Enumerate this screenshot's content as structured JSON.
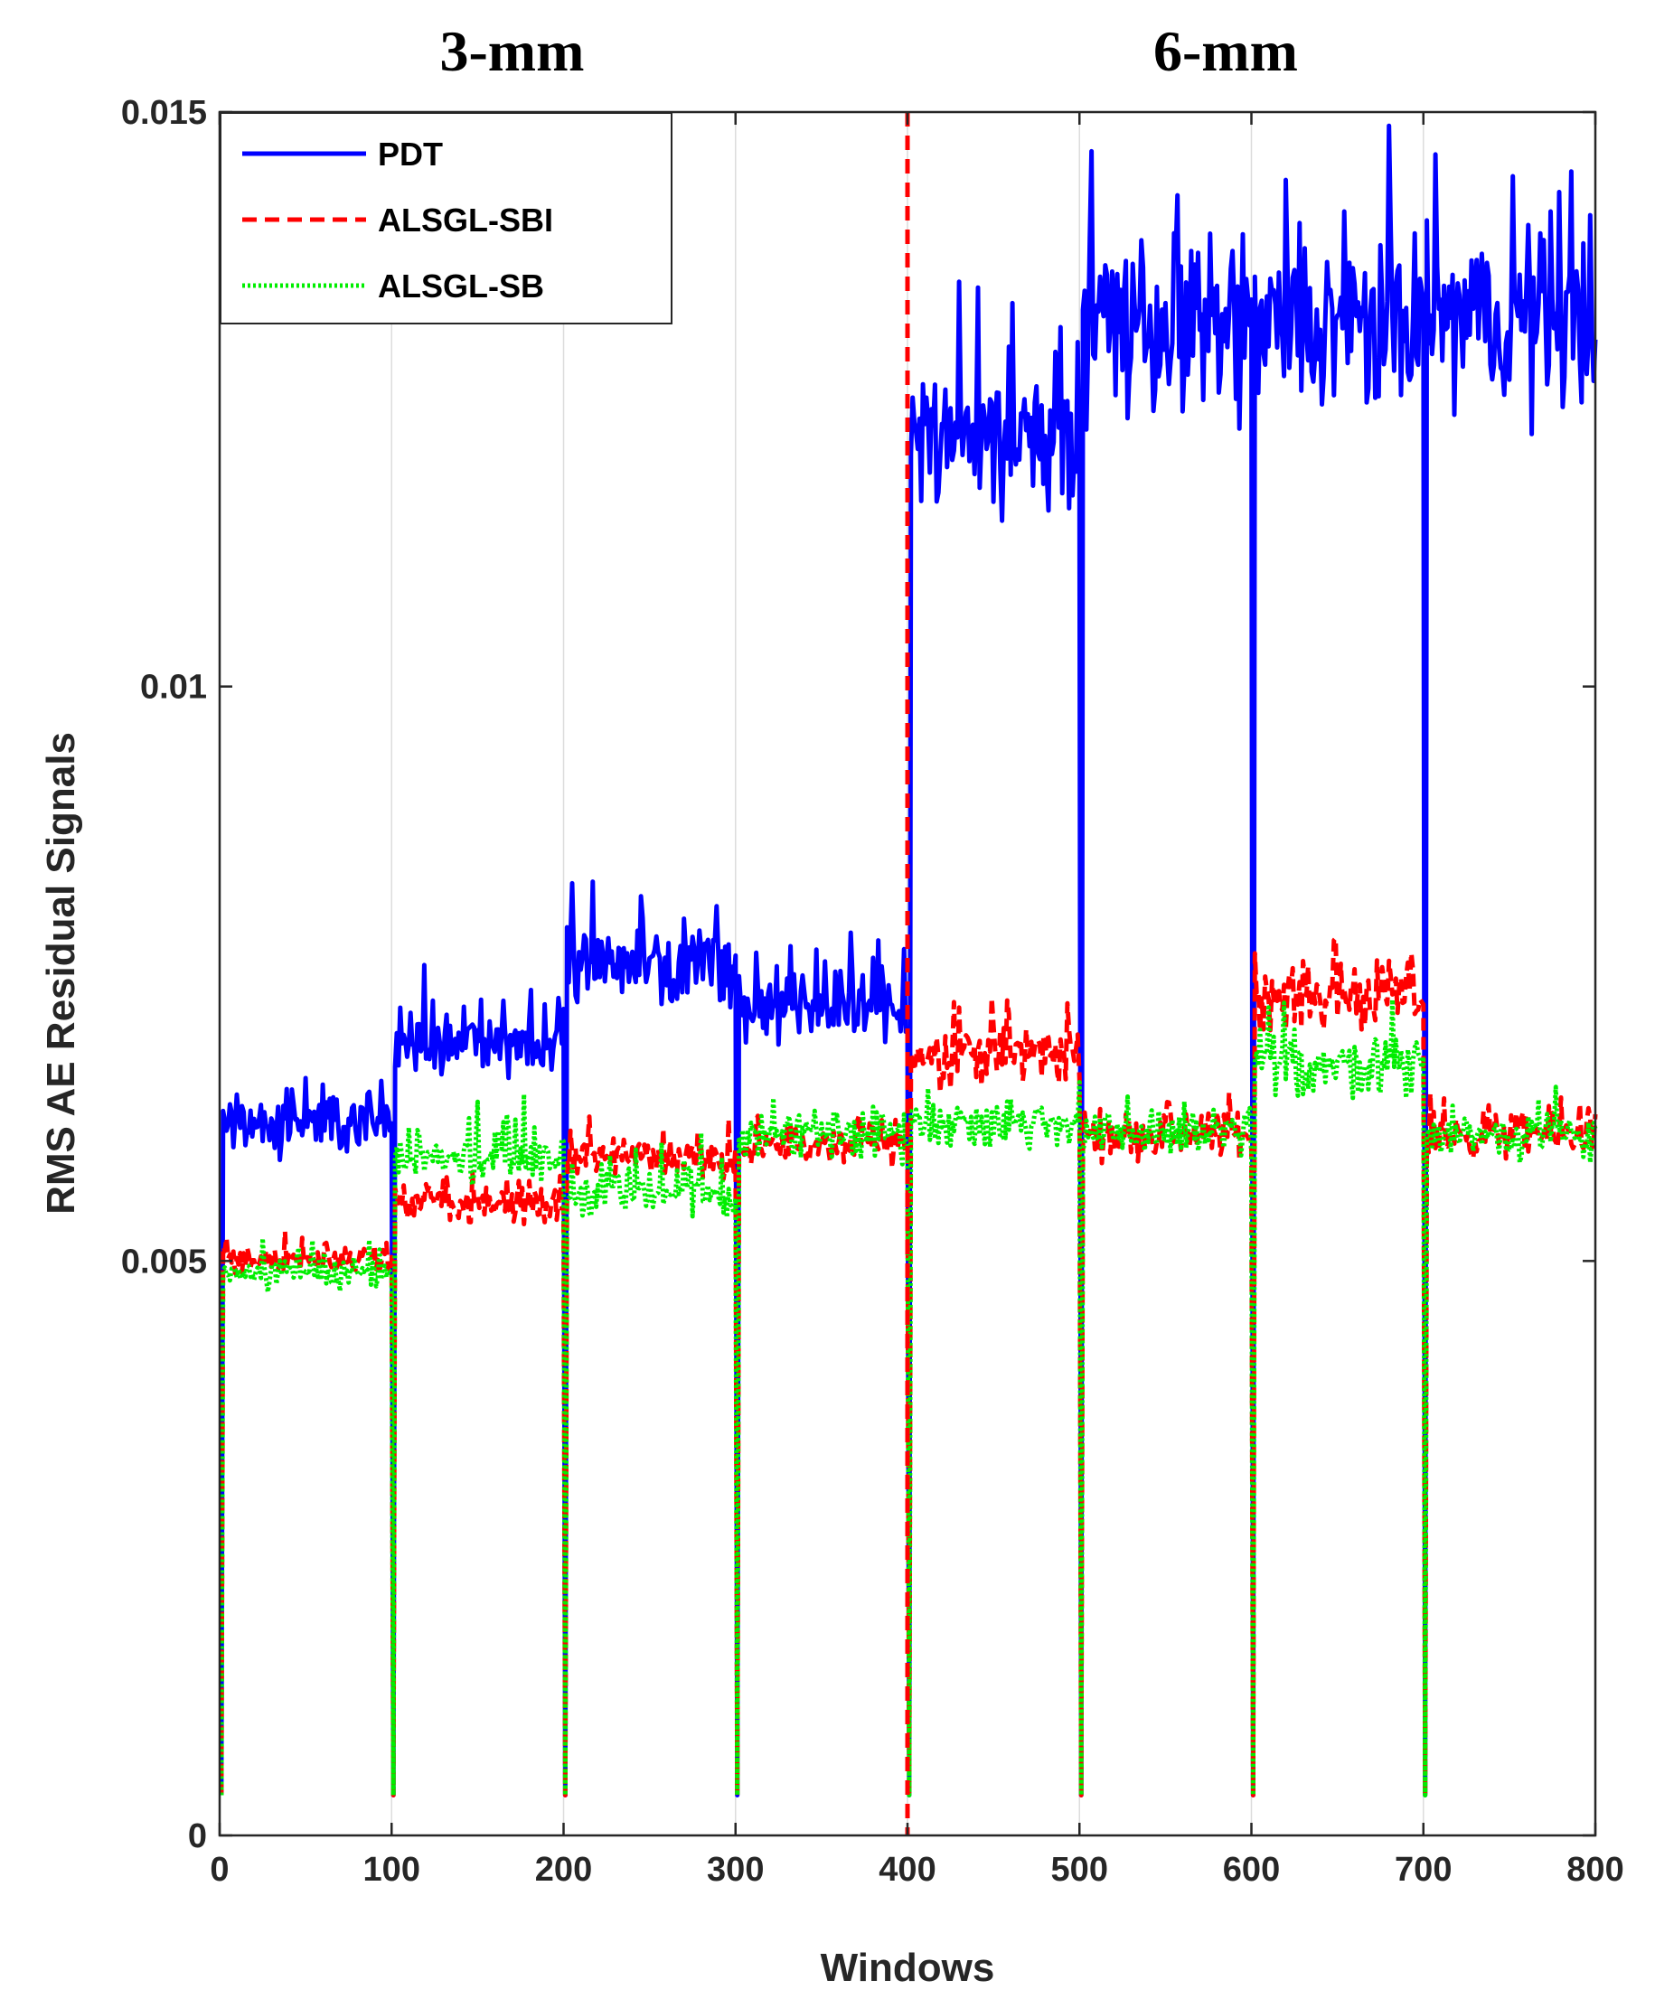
{
  "chart_data": {
    "type": "line",
    "title": "",
    "xlabel": "Windows",
    "ylabel": "RMS AE Residual Signals",
    "xlim": [
      0,
      800
    ],
    "ylim": [
      0,
      0.015
    ],
    "xticks": [
      0,
      100,
      200,
      300,
      400,
      500,
      600,
      700,
      800
    ],
    "xtick_labels": [
      "0",
      "100",
      "200",
      "300",
      "400",
      "500",
      "600",
      "700",
      "800"
    ],
    "yticks": [
      0,
      0.005,
      0.01,
      0.015
    ],
    "ytick_labels": [
      "0",
      "0.005",
      "0.01",
      "0.015"
    ],
    "grid": "vertical",
    "legend_position": "top-left",
    "region_labels": [
      {
        "text": "3-mm",
        "x": 170
      },
      {
        "text": "6-mm",
        "x": 585
      }
    ],
    "separator_x": 400,
    "segment_starts": [
      0,
      100,
      200,
      300,
      400,
      500,
      600,
      700
    ],
    "dip_value": 0.00035,
    "series": [
      {
        "name": "PDT",
        "color": "#0000ff",
        "style": "solid",
        "segment_means": [
          0.0062,
          0.0069,
          0.0076,
          0.0072,
          0.0122,
          0.0131,
          0.0131,
          0.0132
        ],
        "segment_noise": [
          0.00022,
          0.00028,
          0.00032,
          0.0003,
          0.00065,
          0.0007,
          0.0007,
          0.0007
        ]
      },
      {
        "name": "ALSGL-SBI",
        "color": "#ff0000",
        "style": "dashed",
        "segment_means": [
          0.005,
          0.0055,
          0.0059,
          0.006,
          0.0068,
          0.0061,
          0.0073,
          0.0061
        ],
        "segment_noise": [
          0.00012,
          0.00015,
          0.00018,
          0.00015,
          0.00025,
          0.00018,
          0.00025,
          0.00018
        ]
      },
      {
        "name": "ALSGL-SB",
        "color": "#00ee00",
        "style": "dotted",
        "segment_means": [
          0.0049,
          0.0059,
          0.0056,
          0.0061,
          0.0062,
          0.0061,
          0.0067,
          0.0061
        ],
        "segment_noise": [
          0.00013,
          0.0002,
          0.0002,
          0.00018,
          0.00018,
          0.00018,
          0.00025,
          0.00018
        ]
      }
    ]
  }
}
